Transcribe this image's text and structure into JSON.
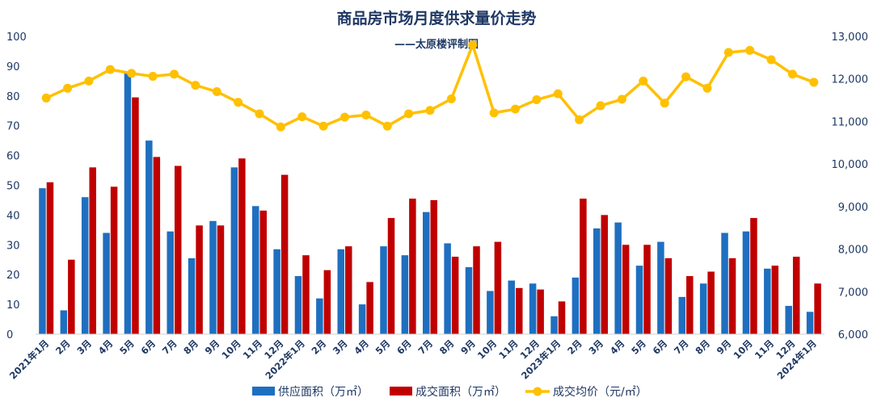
{
  "chart_data": {
    "type": "bar",
    "title": "商品房市场月度供求量价走势",
    "subtitle": "——太原楼评制图",
    "categories": [
      "2021年1月",
      "2月",
      "3月",
      "4月",
      "5月",
      "6月",
      "7月",
      "8月",
      "9月",
      "10月",
      "11月",
      "12月",
      "2022年1月",
      "2月",
      "3月",
      "4月",
      "5月",
      "6月",
      "7月",
      "8月",
      "9月",
      "10月",
      "11月",
      "12月",
      "2023年1月",
      "2月",
      "3月",
      "4月",
      "5月",
      "6月",
      "7月",
      "8月",
      "9月",
      "10月",
      "11月",
      "12月",
      "2024年1月"
    ],
    "series": [
      {
        "name": "供应面积（万㎡）",
        "type": "bar",
        "axis": "left",
        "color": "#1f6fc0",
        "values": [
          49,
          8,
          46,
          34,
          88,
          65,
          34.5,
          25.5,
          38,
          56,
          43,
          28.5,
          19.5,
          12,
          28.5,
          10,
          29.5,
          26.5,
          41,
          30.5,
          22.5,
          14.5,
          18,
          17,
          6,
          19,
          35.5,
          37.5,
          23,
          31,
          12.5,
          17,
          34,
          34.5,
          22,
          9.5,
          7.5
        ]
      },
      {
        "name": "成交面积（万㎡）",
        "type": "bar",
        "axis": "left",
        "color": "#c00000",
        "values": [
          51,
          25,
          56,
          49.5,
          79.5,
          59.5,
          56.5,
          36.5,
          36.5,
          59,
          41.5,
          53.5,
          26.5,
          21.5,
          29.5,
          17.5,
          39,
          45.5,
          45,
          26,
          29.5,
          31,
          15.5,
          15,
          11,
          45.5,
          40,
          30,
          30,
          25.5,
          19.5,
          21,
          25.5,
          39,
          23,
          26,
          17
        ]
      },
      {
        "name": "成交均价（元/㎡）",
        "type": "line",
        "axis": "right",
        "color": "#ffc000",
        "values": [
          11550,
          11780,
          11950,
          12220,
          12130,
          12060,
          12110,
          11850,
          11700,
          11450,
          11180,
          10870,
          11110,
          10890,
          11100,
          11150,
          10890,
          11180,
          11260,
          11530,
          12800,
          11200,
          11290,
          11510,
          11650,
          11040,
          11370,
          11520,
          11950,
          11430,
          12050,
          11780,
          12620,
          12670,
          12450,
          12110,
          11920
        ]
      }
    ],
    "y_left": {
      "min": 0,
      "max": 100,
      "ticks": [
        "0",
        "10",
        "20",
        "30",
        "40",
        "50",
        "60",
        "70",
        "80",
        "90",
        "100"
      ]
    },
    "y_right": {
      "min": 6000,
      "max": 13000,
      "ticks": [
        "6,000",
        "7,000",
        "8,000",
        "9,000",
        "10,000",
        "11,000",
        "12,000",
        "13,000"
      ]
    },
    "legend": "bottom",
    "grid": false
  }
}
